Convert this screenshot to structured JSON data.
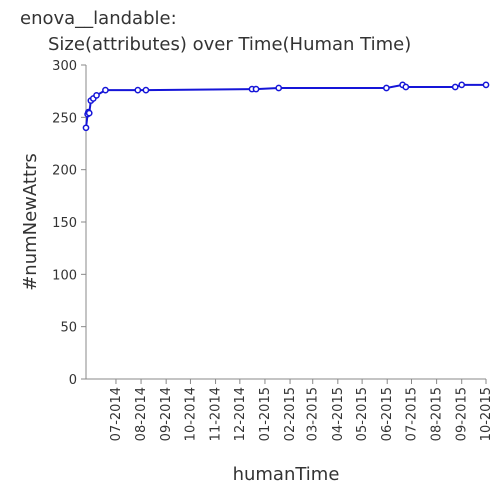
{
  "chart_data": {
    "type": "line",
    "title": [
      "enova__landable:",
      "Size(attributes) over Time(Human Time)"
    ],
    "xlabel": "humanTime",
    "ylabel": "#numNewAttrs",
    "x_ticks": [
      "07-2014",
      "08-2014",
      "09-2014",
      "10-2014",
      "11-2014",
      "12-2014",
      "01-2015",
      "02-2015",
      "03-2015",
      "04-2015",
      "05-2015",
      "06-2015",
      "07-2015",
      "08-2015",
      "09-2015",
      "10-2015"
    ],
    "x_tick_dates": [
      "2014-07-01",
      "2014-08-01",
      "2014-09-01",
      "2014-10-01",
      "2014-11-01",
      "2014-12-01",
      "2015-01-01",
      "2015-02-01",
      "2015-03-01",
      "2015-04-01",
      "2015-05-01",
      "2015-06-01",
      "2015-07-01",
      "2015-08-01",
      "2015-09-01",
      "2015-10-01"
    ],
    "xlim": [
      "2014-05-25",
      "2015-10-01"
    ],
    "ylim": [
      0,
      300
    ],
    "y_ticks": [
      0,
      50,
      100,
      150,
      200,
      250,
      300
    ],
    "grid": false,
    "legend": "none",
    "line_color": "#1515d8",
    "series": [
      {
        "x": [
          "2014-05-25",
          "2014-05-27",
          "2014-05-28",
          "2014-05-29",
          "2014-05-31",
          "2014-06-03",
          "2014-06-07",
          "2014-06-18",
          "2014-07-28",
          "2014-08-07",
          "2014-12-16",
          "2014-12-21",
          "2015-01-18",
          "2015-05-31",
          "2015-06-20",
          "2015-06-24",
          "2015-08-24",
          "2015-09-01",
          "2015-10-01"
        ],
        "values": [
          240,
          253,
          255,
          254,
          266,
          268,
          271,
          276,
          276,
          276,
          277,
          277,
          278,
          278,
          281,
          279,
          279,
          281,
          281
        ]
      }
    ]
  }
}
